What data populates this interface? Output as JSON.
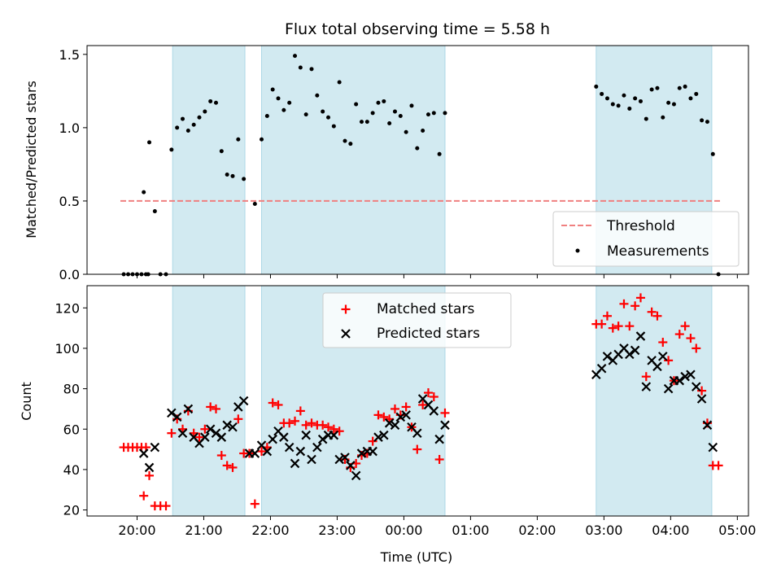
{
  "colors": {
    "shade": "#add8e6",
    "threshold": "#f08080",
    "matched": "#ff0000",
    "predicted": "#000000",
    "measurements": "#000000"
  },
  "chart_data": [
    {
      "type": "scatter",
      "title": "Flux total observing time = 5.58 h",
      "xlabel": "",
      "ylabel": "Matched/Predicted stars",
      "xlim": [
        "19:15",
        "05:10"
      ],
      "ylim": [
        0,
        1.56
      ],
      "yticks": [
        "0.0",
        "0.5",
        "1.0",
        "1.5"
      ],
      "grid": false,
      "legend_position": "lower-right",
      "shaded_x_intervals": [
        [
          "20:32",
          "21:37"
        ],
        [
          "21:52",
          "00:37"
        ],
        [
          "02:53",
          "04:37"
        ]
      ],
      "threshold": {
        "name": "Threshold",
        "y": 0.5,
        "x_range": [
          "19:45",
          "04:45"
        ]
      },
      "series": [
        {
          "name": "Measurements",
          "marker": "dot",
          "points": [
            [
              "19:48",
              0
            ],
            [
              "19:52",
              0
            ],
            [
              "19:56",
              0
            ],
            [
              "20:00",
              0
            ],
            [
              "20:04",
              0
            ],
            [
              "20:08",
              0
            ],
            [
              "20:10",
              0
            ],
            [
              "20:06",
              0.56
            ],
            [
              "20:11",
              0.9
            ],
            [
              "20:16",
              0.43
            ],
            [
              "20:21",
              0
            ],
            [
              "20:26",
              0
            ],
            [
              "20:31",
              0.85
            ],
            [
              "20:36",
              1.0
            ],
            [
              "20:41",
              1.06
            ],
            [
              "20:46",
              0.98
            ],
            [
              "20:51",
              1.02
            ],
            [
              "20:56",
              1.07
            ],
            [
              "21:01",
              1.11
            ],
            [
              "21:06",
              1.18
            ],
            [
              "21:11",
              1.17
            ],
            [
              "21:16",
              0.84
            ],
            [
              "21:21",
              0.68
            ],
            [
              "21:26",
              0.67
            ],
            [
              "21:31",
              0.92
            ],
            [
              "21:36",
              0.65
            ],
            [
              "21:46",
              0.48
            ],
            [
              "21:52",
              0.92
            ],
            [
              "21:57",
              1.08
            ],
            [
              "22:02",
              1.26
            ],
            [
              "22:07",
              1.2
            ],
            [
              "22:12",
              1.12
            ],
            [
              "22:17",
              1.17
            ],
            [
              "22:22",
              1.49
            ],
            [
              "22:27",
              1.41
            ],
            [
              "22:32",
              1.09
            ],
            [
              "22:37",
              1.4
            ],
            [
              "22:42",
              1.22
            ],
            [
              "22:47",
              1.11
            ],
            [
              "22:52",
              1.07
            ],
            [
              "22:57",
              1.01
            ],
            [
              "23:02",
              1.31
            ],
            [
              "23:07",
              0.91
            ],
            [
              "23:12",
              0.89
            ],
            [
              "23:17",
              1.16
            ],
            [
              "23:22",
              1.04
            ],
            [
              "23:27",
              1.04
            ],
            [
              "23:32",
              1.1
            ],
            [
              "23:37",
              1.17
            ],
            [
              "23:42",
              1.18
            ],
            [
              "23:47",
              1.03
            ],
            [
              "23:52",
              1.11
            ],
            [
              "23:57",
              1.08
            ],
            [
              "00:02",
              0.97
            ],
            [
              "00:07",
              1.15
            ],
            [
              "00:12",
              0.86
            ],
            [
              "00:17",
              0.98
            ],
            [
              "00:22",
              1.09
            ],
            [
              "00:27",
              1.1
            ],
            [
              "00:32",
              0.82
            ],
            [
              "00:37",
              1.1
            ],
            [
              "02:53",
              1.28
            ],
            [
              "02:58",
              1.23
            ],
            [
              "03:03",
              1.2
            ],
            [
              "03:08",
              1.16
            ],
            [
              "03:13",
              1.15
            ],
            [
              "03:18",
              1.22
            ],
            [
              "03:23",
              1.13
            ],
            [
              "03:28",
              1.2
            ],
            [
              "03:33",
              1.18
            ],
            [
              "03:38",
              1.06
            ],
            [
              "03:43",
              1.26
            ],
            [
              "03:48",
              1.27
            ],
            [
              "03:53",
              1.07
            ],
            [
              "03:58",
              1.17
            ],
            [
              "04:03",
              1.16
            ],
            [
              "04:08",
              1.27
            ],
            [
              "04:13",
              1.28
            ],
            [
              "04:18",
              1.2
            ],
            [
              "04:23",
              1.23
            ],
            [
              "04:28",
              1.05
            ],
            [
              "04:33",
              1.04
            ],
            [
              "04:38",
              0.82
            ],
            [
              "04:43",
              0
            ]
          ]
        }
      ]
    },
    {
      "type": "scatter",
      "title": "",
      "xlabel": "Time (UTC)",
      "ylabel": "Count",
      "xlim": [
        "19:15",
        "05:10"
      ],
      "ylim": [
        17,
        131
      ],
      "yticks": [
        "20",
        "40",
        "60",
        "80",
        "100",
        "120"
      ],
      "xticks": [
        "20:00",
        "21:00",
        "22:00",
        "23:00",
        "00:00",
        "01:00",
        "02:00",
        "03:00",
        "04:00",
        "05:00"
      ],
      "grid": false,
      "legend_position": "upper-center",
      "shaded_x_intervals": [
        [
          "20:32",
          "21:37"
        ],
        [
          "21:52",
          "00:37"
        ],
        [
          "02:53",
          "04:37"
        ]
      ],
      "series": [
        {
          "name": "Matched stars",
          "marker": "plus",
          "points": [
            [
              "19:48",
              51
            ],
            [
              "19:52",
              51
            ],
            [
              "19:56",
              51
            ],
            [
              "20:00",
              51
            ],
            [
              "20:04",
              51
            ],
            [
              "20:08",
              51
            ],
            [
              "20:06",
              27
            ],
            [
              "20:11",
              37
            ],
            [
              "20:16",
              22
            ],
            [
              "20:21",
              22
            ],
            [
              "20:26",
              22
            ],
            [
              "20:31",
              58
            ],
            [
              "20:36",
              65
            ],
            [
              "20:41",
              60
            ],
            [
              "20:46",
              69
            ],
            [
              "20:51",
              58
            ],
            [
              "20:56",
              56
            ],
            [
              "21:01",
              60
            ],
            [
              "21:06",
              71
            ],
            [
              "21:11",
              70
            ],
            [
              "21:16",
              47
            ],
            [
              "21:21",
              42
            ],
            [
              "21:26",
              41
            ],
            [
              "21:31",
              65
            ],
            [
              "21:36",
              48
            ],
            [
              "21:41",
              48
            ],
            [
              "21:46",
              23
            ],
            [
              "21:52",
              49
            ],
            [
              "21:57",
              51
            ],
            [
              "22:02",
              73
            ],
            [
              "22:07",
              72
            ],
            [
              "22:12",
              63
            ],
            [
              "22:17",
              63
            ],
            [
              "22:22",
              64
            ],
            [
              "22:27",
              69
            ],
            [
              "22:32",
              62
            ],
            [
              "22:37",
              63
            ],
            [
              "22:42",
              62
            ],
            [
              "22:47",
              62
            ],
            [
              "22:52",
              61
            ],
            [
              "22:57",
              60
            ],
            [
              "23:02",
              59
            ],
            [
              "23:07",
              45
            ],
            [
              "23:12",
              41
            ],
            [
              "23:17",
              43
            ],
            [
              "23:22",
              47
            ],
            [
              "23:27",
              48
            ],
            [
              "23:32",
              54
            ],
            [
              "23:37",
              67
            ],
            [
              "23:42",
              66
            ],
            [
              "23:47",
              65
            ],
            [
              "23:52",
              70
            ],
            [
              "23:57",
              67
            ],
            [
              "00:02",
              71
            ],
            [
              "00:07",
              61
            ],
            [
              "00:12",
              50
            ],
            [
              "00:17",
              72
            ],
            [
              "00:22",
              78
            ],
            [
              "00:27",
              76
            ],
            [
              "00:32",
              45
            ],
            [
              "00:37",
              68
            ],
            [
              "02:53",
              112
            ],
            [
              "02:58",
              112
            ],
            [
              "03:03",
              116
            ],
            [
              "03:08",
              110
            ],
            [
              "03:13",
              111
            ],
            [
              "03:18",
              122
            ],
            [
              "03:23",
              111
            ],
            [
              "03:28",
              121
            ],
            [
              "03:33",
              125
            ],
            [
              "03:38",
              86
            ],
            [
              "03:43",
              118
            ],
            [
              "03:48",
              116
            ],
            [
              "03:53",
              103
            ],
            [
              "03:58",
              94
            ],
            [
              "04:03",
              84
            ],
            [
              "04:08",
              107
            ],
            [
              "04:13",
              111
            ],
            [
              "04:18",
              105
            ],
            [
              "04:23",
              100
            ],
            [
              "04:28",
              79
            ],
            [
              "04:33",
              63
            ],
            [
              "04:38",
              42
            ],
            [
              "04:43",
              42
            ]
          ]
        },
        {
          "name": "Predicted stars",
          "marker": "x",
          "points": [
            [
              "20:06",
              48
            ],
            [
              "20:11",
              41
            ],
            [
              "20:16",
              51
            ],
            [
              "20:31",
              68
            ],
            [
              "20:36",
              66
            ],
            [
              "20:41",
              58
            ],
            [
              "20:46",
              70
            ],
            [
              "20:51",
              56
            ],
            [
              "20:56",
              53
            ],
            [
              "21:01",
              56
            ],
            [
              "21:06",
              60
            ],
            [
              "21:11",
              58
            ],
            [
              "21:16",
              56
            ],
            [
              "21:21",
              62
            ],
            [
              "21:26",
              61
            ],
            [
              "21:31",
              71
            ],
            [
              "21:36",
              74
            ],
            [
              "21:41",
              48
            ],
            [
              "21:46",
              48
            ],
            [
              "21:52",
              52
            ],
            [
              "21:57",
              49
            ],
            [
              "22:02",
              55
            ],
            [
              "22:07",
              59
            ],
            [
              "22:12",
              56
            ],
            [
              "22:17",
              51
            ],
            [
              "22:22",
              43
            ],
            [
              "22:27",
              49
            ],
            [
              "22:32",
              57
            ],
            [
              "22:37",
              45
            ],
            [
              "22:42",
              51
            ],
            [
              "22:47",
              55
            ],
            [
              "22:52",
              57
            ],
            [
              "22:57",
              57
            ],
            [
              "23:02",
              45
            ],
            [
              "23:07",
              46
            ],
            [
              "23:12",
              42
            ],
            [
              "23:17",
              37
            ],
            [
              "23:22",
              48
            ],
            [
              "23:27",
              49
            ],
            [
              "23:32",
              49
            ],
            [
              "23:37",
              56
            ],
            [
              "23:42",
              57
            ],
            [
              "23:47",
              63
            ],
            [
              "23:52",
              62
            ],
            [
              "23:57",
              66
            ],
            [
              "00:02",
              67
            ],
            [
              "00:07",
              61
            ],
            [
              "00:12",
              58
            ],
            [
              "00:17",
              75
            ],
            [
              "00:22",
              72
            ],
            [
              "00:27",
              69
            ],
            [
              "00:32",
              55
            ],
            [
              "00:37",
              62
            ],
            [
              "02:53",
              87
            ],
            [
              "02:58",
              90
            ],
            [
              "03:03",
              96
            ],
            [
              "03:08",
              94
            ],
            [
              "03:13",
              97
            ],
            [
              "03:18",
              100
            ],
            [
              "03:23",
              97
            ],
            [
              "03:28",
              99
            ],
            [
              "03:33",
              106
            ],
            [
              "03:38",
              81
            ],
            [
              "03:43",
              94
            ],
            [
              "03:48",
              91
            ],
            [
              "03:53",
              96
            ],
            [
              "03:58",
              80
            ],
            [
              "04:03",
              84
            ],
            [
              "04:08",
              84
            ],
            [
              "04:13",
              86
            ],
            [
              "04:18",
              87
            ],
            [
              "04:23",
              81
            ],
            [
              "04:28",
              75
            ],
            [
              "04:33",
              62
            ],
            [
              "04:38",
              51
            ]
          ]
        }
      ]
    }
  ]
}
